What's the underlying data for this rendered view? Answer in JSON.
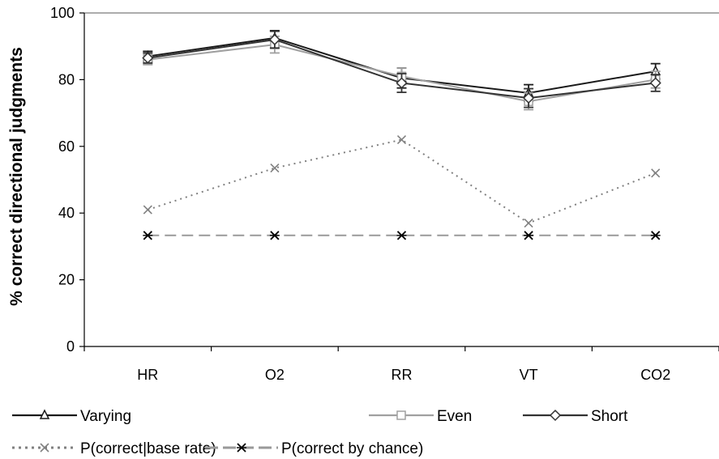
{
  "chart_data": {
    "type": "line",
    "categories": [
      "HR",
      "O2",
      "RR",
      "VT",
      "CO2"
    ],
    "ylabel": "% correct directional judgments",
    "ylim": [
      0,
      100
    ],
    "yticks": [
      0,
      20,
      40,
      60,
      80,
      100
    ],
    "grid": false,
    "legend_position": "bottom",
    "series": [
      {
        "name": "Varying",
        "values": [
          87,
          92.5,
          80.5,
          76,
          82.5
        ],
        "error": [
          1.5,
          2.2,
          3.0,
          2.5,
          2.3
        ],
        "color": "#1a1a1a",
        "marker": "triangle",
        "dash": "solid"
      },
      {
        "name": "Even",
        "values": [
          86,
          90.5,
          81,
          73.5,
          80
        ],
        "error": [
          1.5,
          2.5,
          2.5,
          2.5,
          2.5
        ],
        "color": "#a0a0a0",
        "marker": "square",
        "dash": "solid"
      },
      {
        "name": "Short",
        "values": [
          86.5,
          92,
          79,
          74.5,
          79
        ],
        "error": [
          1.5,
          2.5,
          2.8,
          2.8,
          2.5
        ],
        "color": "#333333",
        "marker": "diamond",
        "dash": "solid"
      },
      {
        "name": "P(correct|base rate)",
        "values": [
          41,
          53.5,
          62,
          37,
          52
        ],
        "color": "#808080",
        "marker": "x",
        "dash": "dotted"
      },
      {
        "name": "P(correct by chance)",
        "values": [
          33.3,
          33.3,
          33.3,
          33.3,
          33.3
        ],
        "color": "#999999",
        "marker": "star",
        "dash": "dashed"
      }
    ]
  }
}
